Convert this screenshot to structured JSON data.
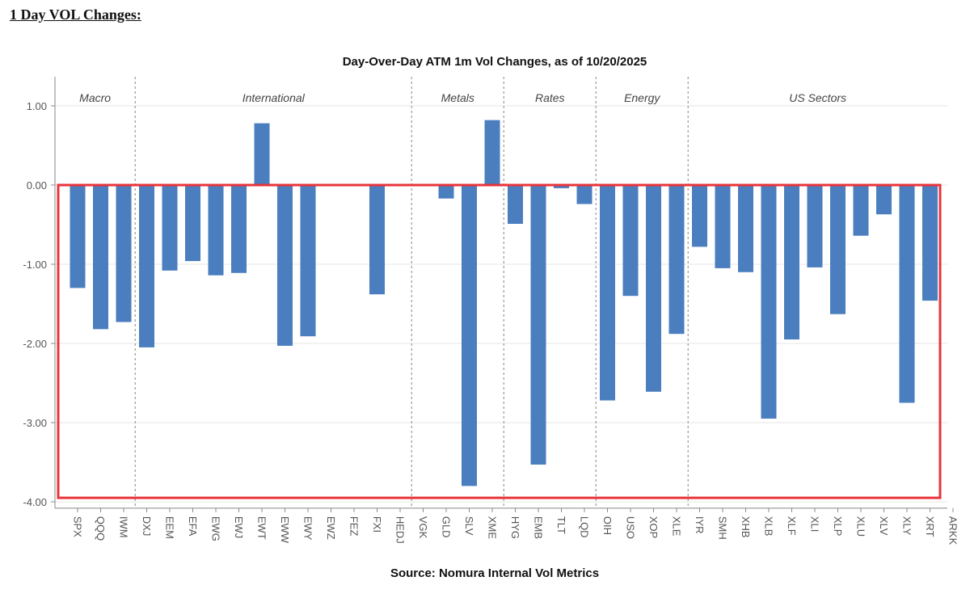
{
  "page": {
    "heading": "1 Day VOL Changes:"
  },
  "chart_data": {
    "type": "bar",
    "title": "Day-Over-Day ATM 1m Vol Changes, as of 10/20/2025",
    "source": "Source: Nomura Internal Vol Metrics",
    "xlabel": "",
    "ylabel": "",
    "ylim": [
      -4.0,
      1.35
    ],
    "yticks": [
      1.0,
      0.0,
      -1.0,
      -2.0,
      -3.0,
      -4.0
    ],
    "ytick_labels": [
      "1.00",
      "0.00",
      "-1.00",
      "-2.00",
      "-3.00",
      "-4.00"
    ],
    "grid": true,
    "bar_color": "#4a7ebf",
    "highlight_color": "#e8343a",
    "highlight_range": {
      "y_from": 0.0,
      "y_to": -3.95
    },
    "categories": [
      "SPX",
      "QQQ",
      "IWM",
      "DXJ",
      "EEM",
      "EFA",
      "EWG",
      "EWJ",
      "EWT",
      "EWW",
      "EWY",
      "EWZ",
      "FEZ",
      "FXI",
      "HEDJ",
      "VGK",
      "GLD",
      "SLV",
      "XME",
      "HYG",
      "EMB",
      "TLT",
      "LQD",
      "OIH",
      "USO",
      "XOP",
      "XLE",
      "IYR",
      "SMH",
      "XHB",
      "XLB",
      "XLF",
      "XLI",
      "XLP",
      "XLU",
      "XLV",
      "XLY",
      "XRT",
      "ARKK"
    ],
    "values": [
      -1.3,
      -1.82,
      -1.73,
      -2.05,
      -1.08,
      -0.96,
      -1.14,
      -1.11,
      0.78,
      -2.03,
      -1.91,
      0,
      0,
      -1.38,
      0,
      0,
      -0.17,
      -3.8,
      0.82,
      -0.49,
      -3.53,
      -0.04,
      -0.24,
      -2.72,
      -1.4,
      -2.61,
      -1.88,
      -0.78,
      -1.05,
      -1.1,
      -2.95,
      -1.95,
      -1.04,
      -1.63,
      -0.64,
      -0.37,
      -2.75,
      -1.46,
      0
    ],
    "groups": [
      {
        "name": "Macro",
        "start": 0,
        "end": 2
      },
      {
        "name": "International",
        "start": 3,
        "end": 14
      },
      {
        "name": "Metals",
        "start": 15,
        "end": 18
      },
      {
        "name": "Rates",
        "start": 19,
        "end": 22
      },
      {
        "name": "Energy",
        "start": 23,
        "end": 26
      },
      {
        "name": "US Sectors",
        "start": 27,
        "end": 38
      }
    ]
  }
}
